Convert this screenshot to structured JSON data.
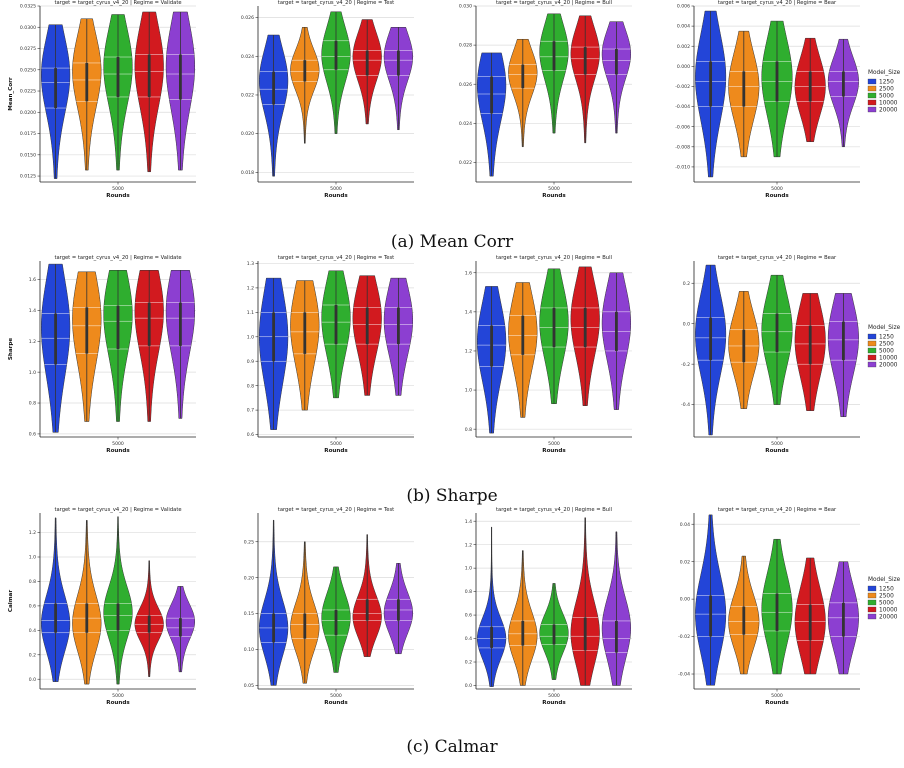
{
  "figure": {
    "x_category": "5000",
    "x_label": "Rounds",
    "legend_title": "Model_Size",
    "colors": [
      "#2345d8",
      "#ee8a1c",
      "#2fae2f",
      "#d21a1f",
      "#8c3fd1"
    ]
  },
  "chart_data": [
    {
      "type": "violin",
      "caption": "(a) Mean Corr",
      "ylabel": "Mean_Corr",
      "series_names": [
        "1250",
        "2500",
        "5000",
        "10000",
        "20000"
      ],
      "panels": [
        {
          "title": "target = target_cyrus_v4_20 | Regime = Validate",
          "ylim": [
            0.0118,
            0.0325
          ],
          "yticks": [
            "0.0125",
            "0.0150",
            "0.0175",
            "0.0200",
            "0.0225",
            "0.0250",
            "0.0275",
            "0.0300",
            "0.0325"
          ],
          "ytick_values": [
            0.0125,
            0.015,
            0.0175,
            0.02,
            0.0225,
            0.025,
            0.0275,
            0.03,
            0.0325
          ],
          "violins": [
            {
              "min": 0.0122,
              "q1": 0.0205,
              "median": 0.0235,
              "q3": 0.0252,
              "max": 0.0303,
              "mode": 0.0245
            },
            {
              "min": 0.0132,
              "q1": 0.0213,
              "median": 0.0238,
              "q3": 0.0258,
              "max": 0.031,
              "mode": 0.025
            },
            {
              "min": 0.0132,
              "q1": 0.0218,
              "median": 0.0245,
              "q3": 0.0265,
              "max": 0.0315,
              "mode": 0.0255
            },
            {
              "min": 0.013,
              "q1": 0.0218,
              "median": 0.0248,
              "q3": 0.0268,
              "max": 0.0318,
              "mode": 0.0255
            },
            {
              "min": 0.0132,
              "q1": 0.0215,
              "median": 0.0245,
              "q3": 0.0268,
              "max": 0.0318,
              "mode": 0.0255
            }
          ]
        },
        {
          "title": "target = target_cyrus_v4_20 | Regime = Test",
          "ylim": [
            0.0175,
            0.0266
          ],
          "yticks": [
            "0.018",
            "0.020",
            "0.022",
            "0.024",
            "0.026"
          ],
          "ytick_values": [
            0.018,
            0.02,
            0.022,
            0.024,
            0.026
          ],
          "violins": [
            {
              "min": 0.0178,
              "q1": 0.0215,
              "median": 0.0223,
              "q3": 0.0232,
              "max": 0.0251,
              "mode": 0.0228
            },
            {
              "min": 0.0195,
              "q1": 0.0227,
              "median": 0.0232,
              "q3": 0.0238,
              "max": 0.0255,
              "mode": 0.0233
            },
            {
              "min": 0.02,
              "q1": 0.0233,
              "median": 0.024,
              "q3": 0.0248,
              "max": 0.0263,
              "mode": 0.0241
            },
            {
              "min": 0.0205,
              "q1": 0.023,
              "median": 0.0238,
              "q3": 0.0243,
              "max": 0.0259,
              "mode": 0.024
            },
            {
              "min": 0.0202,
              "q1": 0.023,
              "median": 0.0238,
              "q3": 0.0243,
              "max": 0.0255,
              "mode": 0.024
            }
          ]
        },
        {
          "title": "target = target_cyrus_v4_20 | Regime = Bull",
          "ylim": [
            0.021,
            0.03
          ],
          "yticks": [
            "0.022",
            "0.024",
            "0.026",
            "0.028",
            "0.030"
          ],
          "ytick_values": [
            0.022,
            0.024,
            0.026,
            0.028,
            0.03
          ],
          "violins": [
            {
              "min": 0.0213,
              "q1": 0.0245,
              "median": 0.0255,
              "q3": 0.0264,
              "max": 0.0276,
              "mode": 0.026
            },
            {
              "min": 0.0228,
              "q1": 0.0258,
              "median": 0.0265,
              "q3": 0.027,
              "max": 0.0283,
              "mode": 0.0266
            },
            {
              "min": 0.0235,
              "q1": 0.0267,
              "median": 0.0274,
              "q3": 0.0282,
              "max": 0.0296,
              "mode": 0.0277
            },
            {
              "min": 0.023,
              "q1": 0.0265,
              "median": 0.0273,
              "q3": 0.0279,
              "max": 0.0295,
              "mode": 0.0276
            },
            {
              "min": 0.0235,
              "q1": 0.0265,
              "median": 0.0272,
              "q3": 0.0278,
              "max": 0.0292,
              "mode": 0.0276
            }
          ]
        },
        {
          "title": "target = target_cyrus_v4_20 | Regime = Bear",
          "ylim": [
            -0.0115,
            0.006
          ],
          "yticks": [
            "-0.010",
            "-0.008",
            "-0.006",
            "-0.004",
            "-0.002",
            "0.000",
            "0.002",
            "0.004",
            "0.006"
          ],
          "ytick_values": [
            -0.01,
            -0.008,
            -0.006,
            -0.004,
            -0.002,
            0,
            0.002,
            0.004,
            0.006
          ],
          "violins": [
            {
              "min": -0.011,
              "q1": -0.004,
              "median": -0.0015,
              "q3": 0.0005,
              "max": 0.0055,
              "mode": -0.001
            },
            {
              "min": -0.009,
              "q1": -0.004,
              "median": -0.002,
              "q3": -0.0005,
              "max": 0.0035,
              "mode": -0.002
            },
            {
              "min": -0.009,
              "q1": -0.0035,
              "median": -0.0015,
              "q3": 0.0005,
              "max": 0.0045,
              "mode": -0.001
            },
            {
              "min": -0.0075,
              "q1": -0.0035,
              "median": -0.002,
              "q3": -0.0005,
              "max": 0.0028,
              "mode": -0.002
            },
            {
              "min": -0.008,
              "q1": -0.003,
              "median": -0.0015,
              "q3": -0.0005,
              "max": 0.0027,
              "mode": -0.0015
            }
          ]
        }
      ]
    },
    {
      "type": "violin",
      "caption": "(b) Sharpe",
      "ylabel": "Sharpe",
      "series_names": [
        "1250",
        "2500",
        "5000",
        "10000",
        "20000"
      ],
      "panels": [
        {
          "title": "target = target_cyrus_v4_20 | Regime = Validate",
          "ylim": [
            0.58,
            1.72
          ],
          "yticks": [
            "0.6",
            "0.8",
            "1.0",
            "1.2",
            "1.4",
            "1.6"
          ],
          "ytick_values": [
            0.6,
            0.8,
            1.0,
            1.2,
            1.4,
            1.6
          ],
          "violins": [
            {
              "min": 0.61,
              "q1": 1.05,
              "median": 1.22,
              "q3": 1.38,
              "max": 1.7,
              "mode": 1.3
            },
            {
              "min": 0.68,
              "q1": 1.12,
              "median": 1.3,
              "q3": 1.42,
              "max": 1.65,
              "mode": 1.35
            },
            {
              "min": 0.68,
              "q1": 1.15,
              "median": 1.33,
              "q3": 1.43,
              "max": 1.66,
              "mode": 1.38
            },
            {
              "min": 0.68,
              "q1": 1.17,
              "median": 1.35,
              "q3": 1.45,
              "max": 1.66,
              "mode": 1.4
            },
            {
              "min": 0.7,
              "q1": 1.17,
              "median": 1.35,
              "q3": 1.45,
              "max": 1.66,
              "mode": 1.4
            }
          ]
        },
        {
          "title": "target = target_cyrus_v4_20 | Regime = Test",
          "ylim": [
            0.59,
            1.31
          ],
          "yticks": [
            "0.6",
            "0.7",
            "0.8",
            "0.9",
            "1.0",
            "1.1",
            "1.2",
            "1.3"
          ],
          "ytick_values": [
            0.6,
            0.7,
            0.8,
            0.9,
            1.0,
            1.1,
            1.2,
            1.3
          ],
          "violins": [
            {
              "min": 0.62,
              "q1": 0.9,
              "median": 1.0,
              "q3": 1.1,
              "max": 1.24,
              "mode": 1.0
            },
            {
              "min": 0.7,
              "q1": 0.93,
              "median": 1.02,
              "q3": 1.1,
              "max": 1.23,
              "mode": 1.05
            },
            {
              "min": 0.75,
              "q1": 0.97,
              "median": 1.06,
              "q3": 1.13,
              "max": 1.27,
              "mode": 1.08
            },
            {
              "min": 0.76,
              "q1": 0.97,
              "median": 1.05,
              "q3": 1.12,
              "max": 1.25,
              "mode": 1.08
            },
            {
              "min": 0.76,
              "q1": 0.97,
              "median": 1.05,
              "q3": 1.12,
              "max": 1.24,
              "mode": 1.07
            }
          ]
        },
        {
          "title": "target = target_cyrus_v4_20 | Regime = Bull",
          "ylim": [
            0.76,
            1.66
          ],
          "yticks": [
            "0.8",
            "1.0",
            "1.2",
            "1.4",
            "1.6"
          ],
          "ytick_values": [
            0.8,
            1.0,
            1.2,
            1.4,
            1.6
          ],
          "violins": [
            {
              "min": 0.78,
              "q1": 1.12,
              "median": 1.23,
              "q3": 1.33,
              "max": 1.53,
              "mode": 1.25
            },
            {
              "min": 0.86,
              "q1": 1.18,
              "median": 1.28,
              "q3": 1.38,
              "max": 1.55,
              "mode": 1.3
            },
            {
              "min": 0.93,
              "q1": 1.22,
              "median": 1.32,
              "q3": 1.42,
              "max": 1.62,
              "mode": 1.35
            },
            {
              "min": 0.92,
              "q1": 1.22,
              "median": 1.32,
              "q3": 1.42,
              "max": 1.63,
              "mode": 1.37
            },
            {
              "min": 0.9,
              "q1": 1.2,
              "median": 1.3,
              "q3": 1.4,
              "max": 1.6,
              "mode": 1.35
            }
          ]
        },
        {
          "title": "target = target_cyrus_v4_20 | Regime = Bear",
          "ylim": [
            -0.56,
            0.31
          ],
          "yticks": [
            "-0.4",
            "-0.2",
            "0.0",
            "0.2"
          ],
          "ytick_values": [
            -0.4,
            -0.2,
            0.0,
            0.2
          ],
          "violins": [
            {
              "min": -0.55,
              "q1": -0.18,
              "median": -0.07,
              "q3": 0.03,
              "max": 0.29,
              "mode": -0.05
            },
            {
              "min": -0.42,
              "q1": -0.19,
              "median": -0.11,
              "q3": -0.03,
              "max": 0.16,
              "mode": -0.1
            },
            {
              "min": -0.4,
              "q1": -0.14,
              "median": -0.04,
              "q3": 0.05,
              "max": 0.24,
              "mode": -0.03
            },
            {
              "min": -0.43,
              "q1": -0.2,
              "median": -0.1,
              "q3": -0.01,
              "max": 0.15,
              "mode": -0.08
            },
            {
              "min": -0.46,
              "q1": -0.18,
              "median": -0.08,
              "q3": 0.01,
              "max": 0.15,
              "mode": -0.07
            }
          ]
        }
      ]
    },
    {
      "type": "violin",
      "caption": "(c) Calmar",
      "ylabel": "Calmar",
      "series_names": [
        "1250",
        "2500",
        "5000",
        "10000",
        "20000"
      ],
      "panels": [
        {
          "title": "target = target_cyrus_v4_20 | Regime = Validate",
          "ylim": [
            -0.08,
            1.36
          ],
          "yticks": [
            "0.0",
            "0.2",
            "0.4",
            "0.6",
            "0.8",
            "1.0",
            "1.2"
          ],
          "ytick_values": [
            0.0,
            0.2,
            0.4,
            0.6,
            0.8,
            1.0,
            1.2
          ],
          "violins": [
            {
              "min": -0.02,
              "q1": 0.38,
              "median": 0.48,
              "q3": 0.62,
              "max": 1.32,
              "mode": 0.45
            },
            {
              "min": -0.04,
              "q1": 0.38,
              "median": 0.5,
              "q3": 0.62,
              "max": 1.3,
              "mode": 0.45
            },
            {
              "min": -0.04,
              "q1": 0.4,
              "median": 0.52,
              "q3": 0.62,
              "max": 1.33,
              "mode": 0.55
            },
            {
              "min": 0.02,
              "q1": 0.38,
              "median": 0.45,
              "q3": 0.52,
              "max": 0.97,
              "mode": 0.45
            },
            {
              "min": 0.06,
              "q1": 0.35,
              "median": 0.42,
              "q3": 0.5,
              "max": 0.76,
              "mode": 0.48
            }
          ]
        },
        {
          "title": "target = target_cyrus_v4_20 | Regime = Test",
          "ylim": [
            0.045,
            0.29
          ],
          "yticks": [
            "0.05",
            "0.10",
            "0.15",
            "0.20",
            "0.25"
          ],
          "ytick_values": [
            0.05,
            0.1,
            0.15,
            0.2,
            0.25
          ],
          "violins": [
            {
              "min": 0.05,
              "q1": 0.11,
              "median": 0.13,
              "q3": 0.15,
              "max": 0.28,
              "mode": 0.13
            },
            {
              "min": 0.053,
              "q1": 0.115,
              "median": 0.135,
              "q3": 0.15,
              "max": 0.25,
              "mode": 0.13
            },
            {
              "min": 0.068,
              "q1": 0.12,
              "median": 0.14,
              "q3": 0.155,
              "max": 0.215,
              "mode": 0.145
            },
            {
              "min": 0.09,
              "q1": 0.14,
              "median": 0.15,
              "q3": 0.17,
              "max": 0.26,
              "mode": 0.145
            },
            {
              "min": 0.094,
              "q1": 0.14,
              "median": 0.155,
              "q3": 0.17,
              "max": 0.22,
              "mode": 0.15
            }
          ]
        },
        {
          "title": "target = target_cyrus_v4_20 | Regime = Bull",
          "ylim": [
            -0.03,
            1.47
          ],
          "yticks": [
            "0.0",
            "0.2",
            "0.4",
            "0.6",
            "0.8",
            "1.0",
            "1.2",
            "1.4"
          ],
          "ytick_values": [
            0.0,
            0.2,
            0.4,
            0.6,
            0.8,
            1.0,
            1.2,
            1.4
          ],
          "violins": [
            {
              "min": -0.01,
              "q1": 0.32,
              "median": 0.4,
              "q3": 0.5,
              "max": 1.35,
              "mode": 0.4
            },
            {
              "min": 0.0,
              "q1": 0.34,
              "median": 0.44,
              "q3": 0.55,
              "max": 1.15,
              "mode": 0.42
            },
            {
              "min": 0.05,
              "q1": 0.35,
              "median": 0.42,
              "q3": 0.52,
              "max": 0.87,
              "mode": 0.45
            },
            {
              "min": 0.0,
              "q1": 0.3,
              "median": 0.42,
              "q3": 0.58,
              "max": 1.43,
              "mode": 0.45
            },
            {
              "min": 0.0,
              "q1": 0.28,
              "median": 0.4,
              "q3": 0.55,
              "max": 1.31,
              "mode": 0.5
            }
          ]
        },
        {
          "title": "target = target_cyrus_v4_20 | Regime = Bear",
          "ylim": [
            -0.048,
            0.046
          ],
          "yticks": [
            "-0.04",
            "-0.02",
            "0.00",
            "0.02",
            "0.04"
          ],
          "ytick_values": [
            -0.04,
            -0.02,
            0.0,
            0.02,
            0.04
          ],
          "violins": [
            {
              "min": -0.046,
              "q1": -0.02,
              "median": -0.008,
              "q3": 0.002,
              "max": 0.045,
              "mode": -0.008
            },
            {
              "min": -0.04,
              "q1": -0.019,
              "median": -0.012,
              "q3": -0.004,
              "max": 0.023,
              "mode": -0.012
            },
            {
              "min": -0.04,
              "q1": -0.017,
              "median": -0.007,
              "q3": 0.003,
              "max": 0.032,
              "mode": -0.005
            },
            {
              "min": -0.04,
              "q1": -0.022,
              "median": -0.012,
              "q3": -0.003,
              "max": 0.022,
              "mode": -0.012
            },
            {
              "min": -0.04,
              "q1": -0.02,
              "median": -0.01,
              "q3": -0.002,
              "max": 0.02,
              "mode": -0.01
            }
          ]
        }
      ]
    }
  ]
}
